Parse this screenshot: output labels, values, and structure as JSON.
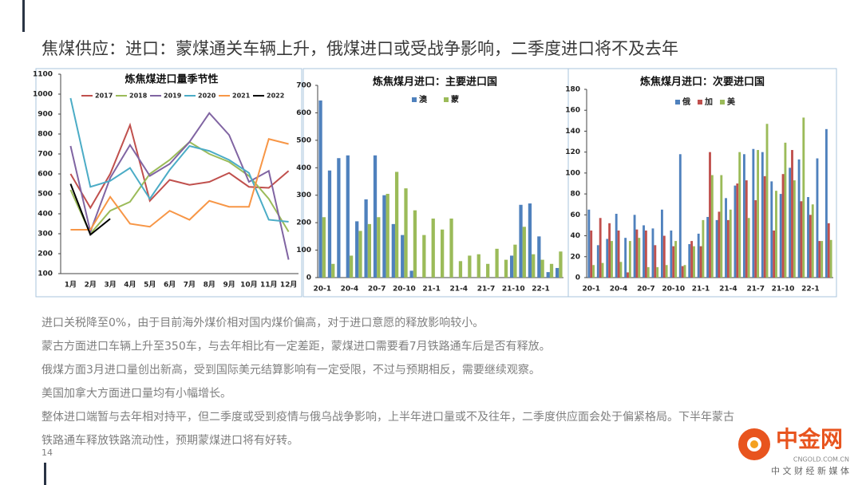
{
  "title": "焦煤供应：进口：蒙煤通关车辆上升，俄煤进口或受战争影响，二季度进口将不及去年",
  "chart_data": [
    {
      "type": "line",
      "title": "炼焦煤进口量季节性",
      "categories": [
        "1月",
        "2月",
        "3月",
        "4月",
        "5月",
        "6月",
        "7月",
        "8月",
        "9月",
        "10月",
        "11月",
        "12月"
      ],
      "ylim": [
        100,
        1100
      ],
      "yticks": [
        100,
        200,
        300,
        400,
        500,
        600,
        700,
        800,
        900,
        1000,
        1100
      ],
      "series": [
        {
          "name": "2017",
          "color": "#c0504d",
          "values": [
            600,
            430,
            600,
            845,
            465,
            570,
            545,
            560,
            605,
            535,
            530,
            615
          ]
        },
        {
          "name": "2018",
          "color": "#9bbb59",
          "values": [
            520,
            300,
            415,
            460,
            600,
            670,
            760,
            700,
            660,
            590,
            475,
            310
          ]
        },
        {
          "name": "2019",
          "color": "#8064a2",
          "values": [
            740,
            310,
            580,
            745,
            590,
            650,
            760,
            905,
            795,
            560,
            615,
            170
          ]
        },
        {
          "name": "2020",
          "color": "#4bacc6",
          "values": [
            980,
            535,
            565,
            630,
            475,
            620,
            740,
            715,
            670,
            605,
            370,
            360
          ]
        },
        {
          "name": "2021",
          "color": "#f79646",
          "values": [
            320,
            320,
            485,
            350,
            335,
            415,
            370,
            465,
            435,
            435,
            775,
            750
          ]
        },
        {
          "name": "2022",
          "color": "#000000",
          "values": [
            550,
            295,
            375,
            null,
            null,
            null,
            null,
            null,
            null,
            null,
            null,
            null
          ]
        }
      ]
    },
    {
      "type": "bar",
      "title": "炼焦煤月进口：主要进口国",
      "categories": [
        "20-1",
        null,
        null,
        "20-4",
        null,
        null,
        "20-7",
        null,
        null,
        "20-10",
        null,
        null,
        "21-1",
        null,
        null,
        "21-4",
        null,
        null,
        "21-7",
        null,
        null,
        "21-10",
        null,
        null,
        "22-1",
        null,
        null
      ],
      "ylim": [
        0,
        700
      ],
      "yticks": [
        0,
        100,
        200,
        300,
        400,
        500,
        600,
        700
      ],
      "series": [
        {
          "name": "澳",
          "color": "#4f81bd",
          "values": [
            645,
            390,
            435,
            445,
            205,
            285,
            445,
            300,
            195,
            155,
            25,
            0,
            0,
            0,
            0,
            0,
            0,
            0,
            0,
            0,
            0,
            80,
            265,
            270,
            150,
            20,
            35
          ]
        },
        {
          "name": "蒙",
          "color": "#9bbb59",
          "values": [
            220,
            50,
            0,
            80,
            170,
            195,
            220,
            305,
            385,
            325,
            245,
            155,
            215,
            175,
            215,
            60,
            80,
            85,
            50,
            105,
            65,
            120,
            185,
            85,
            65,
            50,
            95
          ]
        }
      ]
    },
    {
      "type": "bar",
      "title": "炼焦煤月进口：次要进口国",
      "categories": [
        "20-1",
        null,
        null,
        "20-4",
        null,
        null,
        "20-7",
        null,
        null,
        "20-10",
        null,
        null,
        "21-1",
        null,
        null,
        "21-4",
        null,
        null,
        "21-7",
        null,
        null,
        "21-10",
        null,
        null,
        "22-1",
        null,
        null
      ],
      "ylim": [
        0,
        180
      ],
      "yticks": [
        0,
        20,
        40,
        60,
        80,
        100,
        120,
        140,
        160,
        180
      ],
      "series": [
        {
          "name": "俄",
          "color": "#4f81bd",
          "values": [
            65,
            31,
            37,
            61,
            38,
            60,
            50,
            47,
            65,
            45,
            118,
            32,
            42,
            58,
            55,
            76,
            88,
            118,
            123,
            120,
            92,
            80,
            105,
            113,
            77,
            114,
            142
          ]
        },
        {
          "name": "加",
          "color": "#c0504d",
          "values": [
            45,
            57,
            52,
            45,
            5,
            46,
            45,
            31,
            40,
            30,
            11,
            35,
            30,
            120,
            63,
            55,
            90,
            93,
            74,
            97,
            45,
            99,
            122,
            73,
            60,
            35,
            52
          ]
        },
        {
          "name": "美",
          "color": "#9bbb59",
          "values": [
            12,
            14,
            35,
            15,
            35,
            38,
            10,
            10,
            12,
            35,
            12,
            30,
            55,
            98,
            98,
            65,
            120,
            57,
            122,
            147,
            83,
            129,
            93,
            153,
            70,
            35,
            36
          ]
        }
      ]
    }
  ],
  "notes": [
    "进口关税降至0%，由于目前海外煤价相对国内煤价偏高，对于进口意愿的释放影响较小。",
    "蒙古方面进口车辆上升至350车，与去年相比有一定差距，蒙煤进口需要看7月铁路通车后是否有释放。",
    "俄煤方面3月进口量创出新高，受到国际美元结算影响有一定受限，不过与预期相反，需要继续观察。",
    "美国加拿大方面进口量均有小幅增长。",
    "整体进口端暂与去年相对持平，但二季度或受到疫情与俄乌战争影响，上半年进口量或不及往年，二季度供应面会处于偏紧格局。下半年蒙古",
    "铁路通车释放铁路流动性，预期蒙煤进口将有好转。"
  ],
  "page_number": "14",
  "logo": {
    "name": "中金网",
    "url": "CNGOLD.COM.CN",
    "tagline": "中 文 财 经 新 媒 体"
  }
}
